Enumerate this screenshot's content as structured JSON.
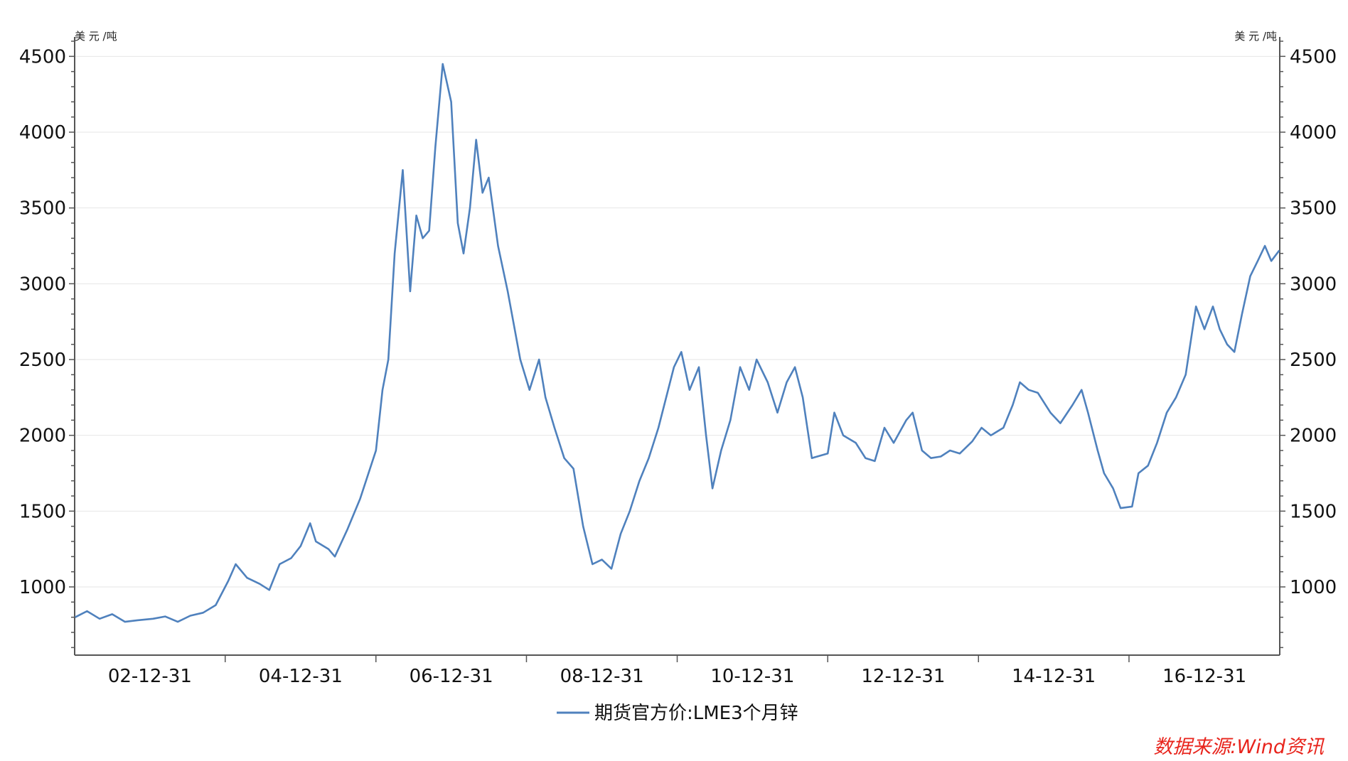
{
  "chart_data": {
    "type": "line",
    "y_unit_left": "美 元 /吨",
    "y_unit_right": "美 元 /吨",
    "ylim": [
      550,
      4600
    ],
    "yticks": [
      1000,
      1500,
      2000,
      2500,
      3000,
      3500,
      4000,
      4500
    ],
    "ytick_labels": [
      "1000",
      "1500",
      "2000",
      "2500",
      "3000",
      "3500",
      "4000",
      "4500"
    ],
    "xlim": [
      "2001-12-31",
      "2017-12-31"
    ],
    "xticks": [
      "2002-12-31",
      "2004-12-31",
      "2006-12-31",
      "2008-12-31",
      "2010-12-31",
      "2012-12-31",
      "2014-12-31",
      "2016-12-31"
    ],
    "xtick_labels": [
      "02-12-31",
      "04-12-31",
      "06-12-31",
      "08-12-31",
      "10-12-31",
      "12-12-31",
      "14-12-31",
      "16-12-31"
    ],
    "grid": true,
    "legend_position": "bottom",
    "source_note": "数据来源:Wind资讯",
    "series": [
      {
        "name": "期货官方价:LME3个月锌",
        "color": "#4f81bd",
        "points": [
          [
            "2002-01-02",
            800
          ],
          [
            "2002-03-01",
            840
          ],
          [
            "2002-05-01",
            790
          ],
          [
            "2002-07-01",
            820
          ],
          [
            "2002-09-01",
            770
          ],
          [
            "2002-11-01",
            780
          ],
          [
            "2003-01-15",
            790
          ],
          [
            "2003-03-15",
            805
          ],
          [
            "2003-05-15",
            770
          ],
          [
            "2003-07-15",
            810
          ],
          [
            "2003-09-15",
            830
          ],
          [
            "2003-11-15",
            880
          ],
          [
            "2004-01-15",
            1040
          ],
          [
            "2004-02-20",
            1150
          ],
          [
            "2004-04-15",
            1060
          ],
          [
            "2004-06-15",
            1020
          ],
          [
            "2004-08-01",
            980
          ],
          [
            "2004-09-20",
            1150
          ],
          [
            "2004-11-15",
            1190
          ],
          [
            "2004-12-31",
            1270
          ],
          [
            "2005-02-15",
            1420
          ],
          [
            "2005-03-15",
            1300
          ],
          [
            "2005-05-15",
            1250
          ],
          [
            "2005-06-15",
            1200
          ],
          [
            "2005-08-15",
            1380
          ],
          [
            "2005-10-15",
            1580
          ],
          [
            "2005-12-31",
            1900
          ],
          [
            "2006-02-01",
            2300
          ],
          [
            "2006-03-01",
            2500
          ],
          [
            "2006-04-01",
            3200
          ],
          [
            "2006-05-10",
            3750
          ],
          [
            "2006-06-15",
            2950
          ],
          [
            "2006-07-15",
            3450
          ],
          [
            "2006-08-15",
            3300
          ],
          [
            "2006-09-15",
            3350
          ],
          [
            "2006-10-15",
            3900
          ],
          [
            "2006-11-20",
            4450
          ],
          [
            "2006-12-31",
            4200
          ],
          [
            "2007-02-01",
            3400
          ],
          [
            "2007-03-01",
            3200
          ],
          [
            "2007-04-01",
            3500
          ],
          [
            "2007-05-01",
            3950
          ],
          [
            "2007-06-01",
            3600
          ],
          [
            "2007-07-01",
            3700
          ],
          [
            "2007-08-15",
            3250
          ],
          [
            "2007-10-01",
            2950
          ],
          [
            "2007-12-01",
            2500
          ],
          [
            "2008-01-15",
            2300
          ],
          [
            "2008-03-01",
            2500
          ],
          [
            "2008-04-01",
            2250
          ],
          [
            "2008-05-15",
            2050
          ],
          [
            "2008-07-01",
            1850
          ],
          [
            "2008-08-15",
            1780
          ],
          [
            "2008-10-01",
            1400
          ],
          [
            "2008-11-15",
            1150
          ],
          [
            "2008-12-31",
            1180
          ],
          [
            "2009-02-15",
            1120
          ],
          [
            "2009-04-01",
            1350
          ],
          [
            "2009-05-15",
            1500
          ],
          [
            "2009-07-01",
            1700
          ],
          [
            "2009-08-15",
            1850
          ],
          [
            "2009-10-01",
            2050
          ],
          [
            "2009-12-15",
            2450
          ],
          [
            "2010-01-20",
            2550
          ],
          [
            "2010-03-01",
            2300
          ],
          [
            "2010-04-15",
            2450
          ],
          [
            "2010-05-20",
            2000
          ],
          [
            "2010-06-20",
            1650
          ],
          [
            "2010-08-01",
            1900
          ],
          [
            "2010-09-15",
            2100
          ],
          [
            "2010-11-01",
            2450
          ],
          [
            "2010-12-15",
            2300
          ],
          [
            "2011-01-20",
            2500
          ],
          [
            "2011-03-15",
            2350
          ],
          [
            "2011-05-01",
            2150
          ],
          [
            "2011-06-15",
            2350
          ],
          [
            "2011-07-25",
            2450
          ],
          [
            "2011-09-01",
            2250
          ],
          [
            "2011-10-15",
            1850
          ],
          [
            "2011-12-31",
            1880
          ],
          [
            "2012-02-01",
            2150
          ],
          [
            "2012-03-15",
            2000
          ],
          [
            "2012-05-15",
            1950
          ],
          [
            "2012-07-01",
            1850
          ],
          [
            "2012-08-15",
            1830
          ],
          [
            "2012-10-01",
            2050
          ],
          [
            "2012-11-15",
            1950
          ],
          [
            "2013-01-15",
            2100
          ],
          [
            "2013-02-15",
            2150
          ],
          [
            "2013-04-01",
            1900
          ],
          [
            "2013-05-15",
            1850
          ],
          [
            "2013-07-01",
            1860
          ],
          [
            "2013-08-15",
            1900
          ],
          [
            "2013-10-01",
            1880
          ],
          [
            "2013-12-01",
            1960
          ],
          [
            "2014-01-15",
            2050
          ],
          [
            "2014-03-01",
            2000
          ],
          [
            "2014-05-01",
            2050
          ],
          [
            "2014-06-15",
            2200
          ],
          [
            "2014-07-20",
            2350
          ],
          [
            "2014-09-01",
            2300
          ],
          [
            "2014-10-15",
            2280
          ],
          [
            "2014-12-15",
            2150
          ],
          [
            "2015-02-01",
            2080
          ],
          [
            "2015-04-01",
            2200
          ],
          [
            "2015-05-15",
            2300
          ],
          [
            "2015-06-15",
            2150
          ],
          [
            "2015-08-01",
            1900
          ],
          [
            "2015-09-01",
            1750
          ],
          [
            "2015-10-15",
            1650
          ],
          [
            "2015-11-20",
            1520
          ],
          [
            "2016-01-15",
            1530
          ],
          [
            "2016-02-15",
            1750
          ],
          [
            "2016-04-01",
            1800
          ],
          [
            "2016-05-15",
            1950
          ],
          [
            "2016-07-01",
            2150
          ],
          [
            "2016-08-15",
            2250
          ],
          [
            "2016-10-01",
            2400
          ],
          [
            "2016-11-20",
            2850
          ],
          [
            "2016-12-31",
            2700
          ],
          [
            "2017-02-10",
            2850
          ],
          [
            "2017-03-15",
            2700
          ],
          [
            "2017-04-20",
            2600
          ],
          [
            "2017-05-25",
            2550
          ],
          [
            "2017-07-01",
            2800
          ],
          [
            "2017-08-10",
            3050
          ],
          [
            "2017-09-15",
            3150
          ],
          [
            "2017-10-20",
            3250
          ],
          [
            "2017-11-20",
            3150
          ],
          [
            "2017-12-29",
            3220
          ]
        ]
      }
    ]
  }
}
